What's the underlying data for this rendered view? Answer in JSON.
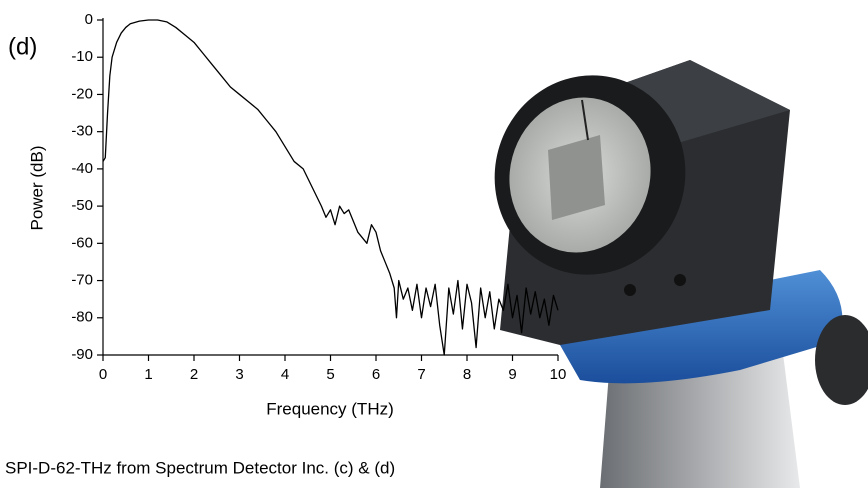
{
  "chart_data": {
    "type": "line",
    "panel_label": "(d)",
    "caption": "SPI-D-62-THz from Spectrum Detector Inc. (c) & (d)",
    "xlabel": "Frequency (THz)",
    "ylabel": "Power (dB)",
    "color": "#000000",
    "xlim": [
      0,
      10
    ],
    "ylim": [
      -90,
      0
    ],
    "xticks": [
      0,
      1,
      2,
      3,
      4,
      5,
      6,
      7,
      8,
      9,
      10
    ],
    "yticks": [
      0,
      -10,
      -20,
      -30,
      -40,
      -50,
      -60,
      -70,
      -80,
      -90
    ],
    "x": [
      0.0,
      0.05,
      0.1,
      0.15,
      0.2,
      0.3,
      0.4,
      0.5,
      0.6,
      0.8,
      1.0,
      1.2,
      1.4,
      1.6,
      1.8,
      2.0,
      2.2,
      2.4,
      2.6,
      2.8,
      3.0,
      3.2,
      3.4,
      3.6,
      3.8,
      4.0,
      4.2,
      4.4,
      4.6,
      4.8,
      4.9,
      5.0,
      5.1,
      5.2,
      5.3,
      5.4,
      5.6,
      5.8,
      5.9,
      6.0,
      6.1,
      6.2,
      6.3,
      6.4,
      6.45,
      6.5,
      6.6,
      6.7,
      6.8,
      6.9,
      7.0,
      7.1,
      7.2,
      7.3,
      7.4,
      7.5,
      7.6,
      7.7,
      7.8,
      7.9,
      8.0,
      8.1,
      8.2,
      8.3,
      8.4,
      8.5,
      8.6,
      8.7,
      8.8,
      8.9,
      9.0,
      9.1,
      9.2,
      9.3,
      9.4,
      9.5,
      9.6,
      9.7,
      9.8,
      9.9,
      10.0
    ],
    "values": [
      -38,
      -37,
      -25,
      -15,
      -10,
      -6,
      -3.5,
      -2,
      -1,
      -0.3,
      0,
      0,
      -0.5,
      -2,
      -4,
      -6,
      -9,
      -12,
      -15,
      -18,
      -20,
      -22,
      -24,
      -27,
      -30,
      -34,
      -38,
      -40,
      -45,
      -50,
      -53,
      -51,
      -55,
      -50,
      -52,
      -51,
      -57,
      -60,
      -55,
      -57,
      -62,
      -65,
      -68,
      -72,
      -80,
      -70,
      -75,
      -72,
      -78,
      -71,
      -80,
      -72,
      -77,
      -71,
      -82,
      -90,
      -72,
      -79,
      -70,
      -83,
      -71,
      -76,
      -88,
      -72,
      -80,
      -73,
      -83,
      -75,
      -78,
      -71,
      -80,
      -74,
      -84,
      -72,
      -79,
      -73,
      -80,
      -75,
      -82,
      -74,
      -78
    ]
  }
}
